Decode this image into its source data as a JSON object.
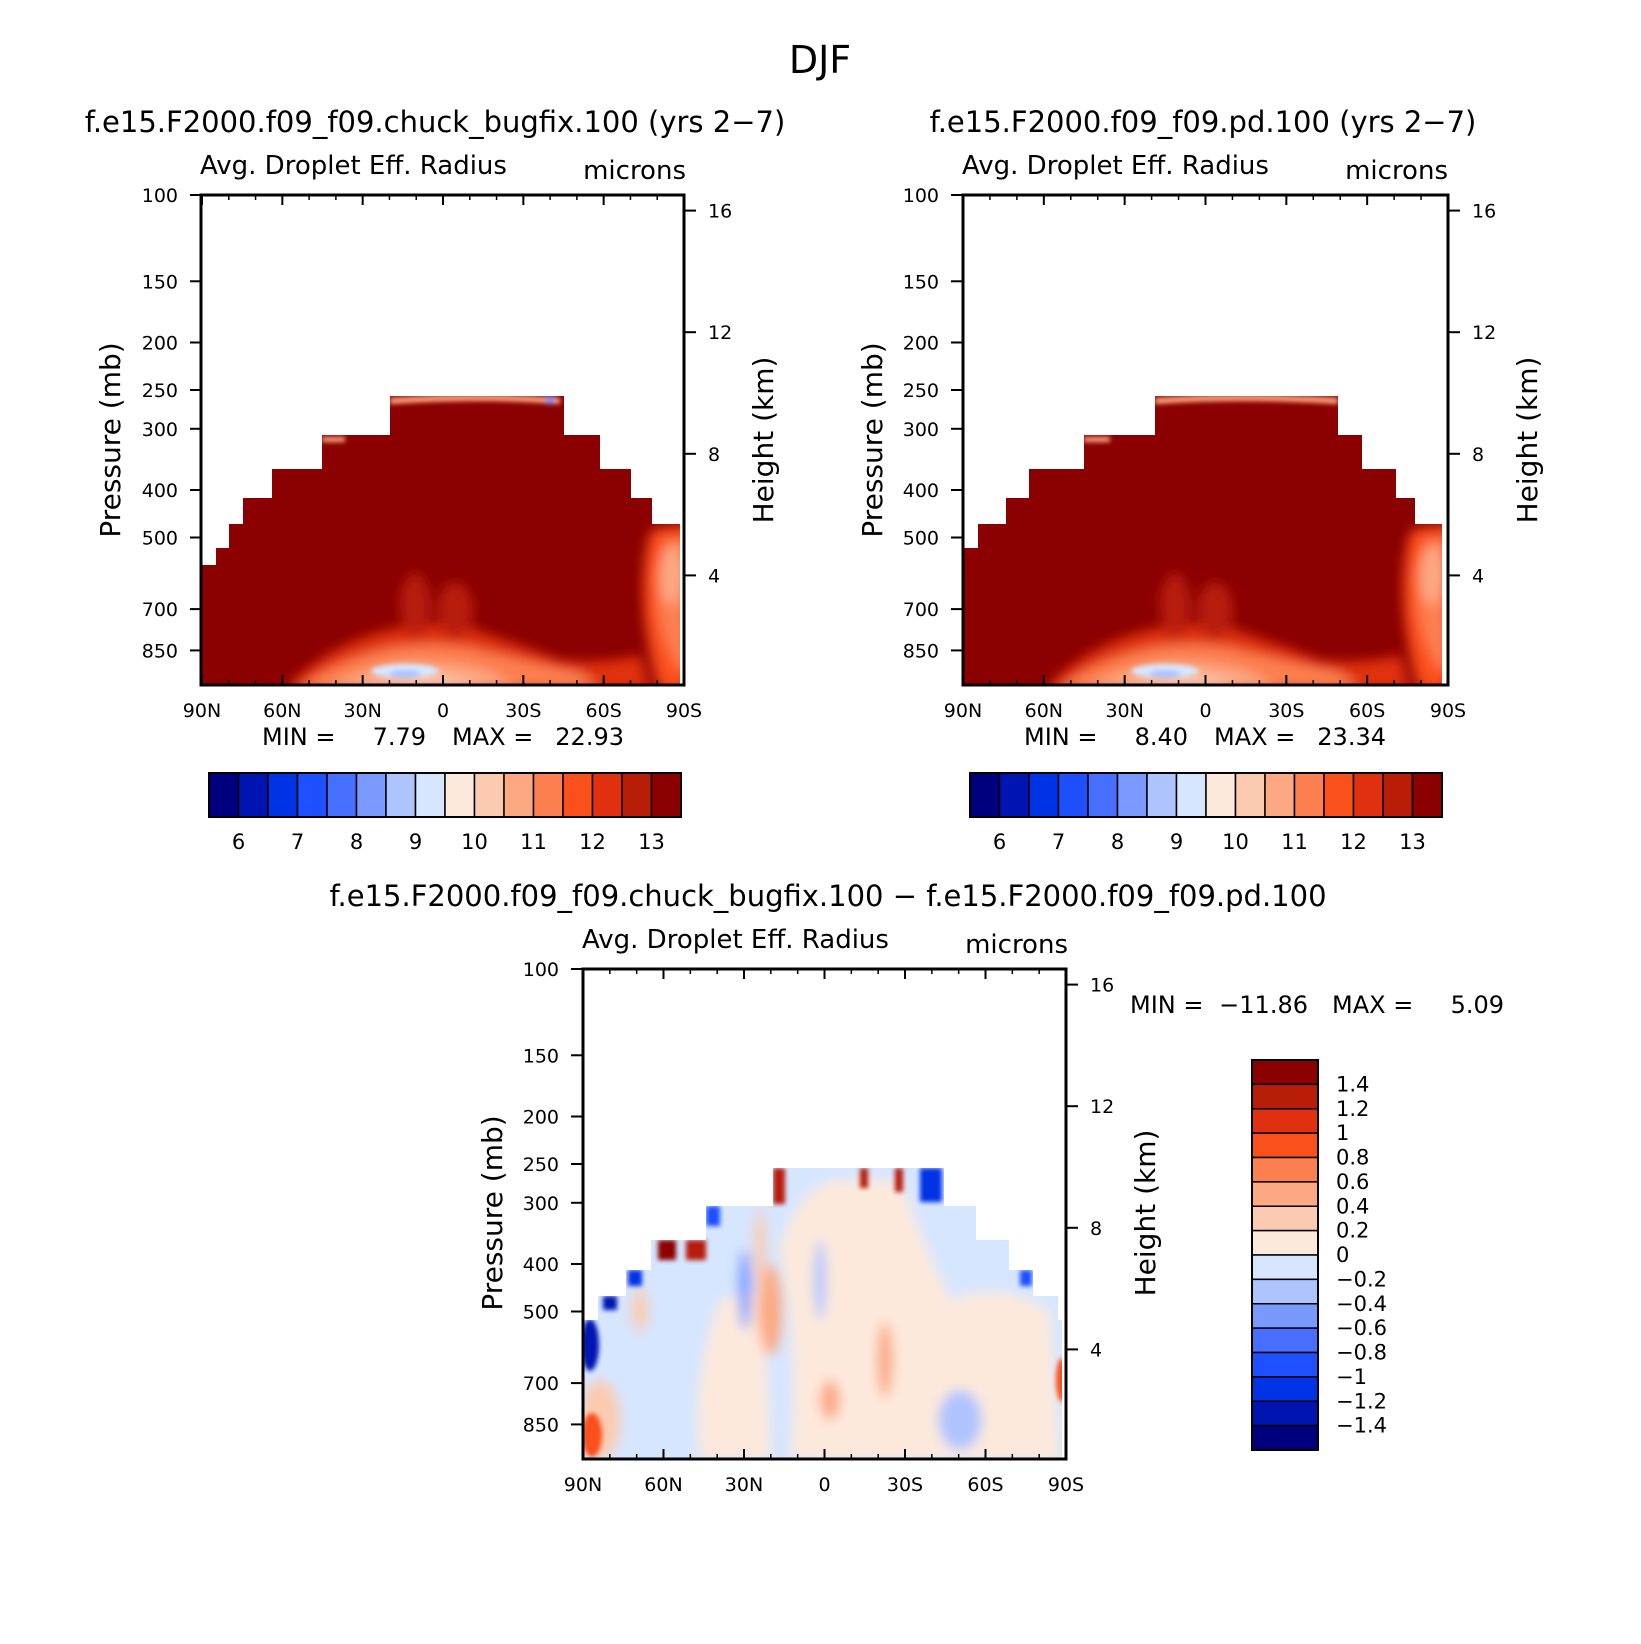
{
  "figure_title": "DJF",
  "colors": {
    "low_scale": [
      "#00007f",
      "#0014b2",
      "#0033e5",
      "#1f50ff",
      "#476fff",
      "#7a99ff",
      "#aec4ff",
      "#d6e6ff",
      "#fde9dc",
      "#fccab0",
      "#fca882",
      "#fc7f4f",
      "#fb4f1c",
      "#e03010",
      "#b81d07",
      "#8b0000"
    ],
    "diff_scale": [
      "#00007f",
      "#0014b2",
      "#0033e5",
      "#1f50ff",
      "#476fff",
      "#7a99ff",
      "#aec4ff",
      "#d6e6ff",
      "#fde9dc",
      "#fccab0",
      "#fca882",
      "#fc7f4f",
      "#fb4f1c",
      "#e03010",
      "#b81d07",
      "#8b0000"
    ]
  },
  "chart_data": [
    {
      "type": "heatmap",
      "panel": "top-left",
      "case_title": "f.e15.F2000.f09_f09.chuck_bugfix.100 (yrs 2−7)",
      "variable": "Avg. Droplet Eff. Radius",
      "units": "microns",
      "ylabel": "Pressure (mb)",
      "ylabel2": "Height (km)",
      "x_ticks": [
        "90N",
        "60N",
        "30N",
        "0",
        "30S",
        "60S",
        "90S"
      ],
      "y_ticks": [
        "100",
        "150",
        "200",
        "250",
        "300",
        "400",
        "500",
        "700",
        "850"
      ],
      "y2_ticks": [
        "16",
        "12",
        "8",
        "4"
      ],
      "min_label": "MIN =",
      "min_value": "7.79",
      "max_label": "MAX =",
      "max_value": "22.93",
      "colorbar_labels": [
        "6",
        "7",
        "8",
        "9",
        "10",
        "11",
        "12",
        "13"
      ],
      "colorbar_orientation": "horizontal",
      "ylim_mb": [
        1000,
        100
      ],
      "dominant_value": ">13.25 (dark red) over cloud region 250–1000 mb",
      "cloud_top_mb": 250
    },
    {
      "type": "heatmap",
      "panel": "top-right",
      "case_title": "f.e15.F2000.f09_f09.pd.100 (yrs 2−7)",
      "variable": "Avg. Droplet Eff. Radius",
      "units": "microns",
      "ylabel": "Pressure (mb)",
      "ylabel2": "Height (km)",
      "x_ticks": [
        "90N",
        "60N",
        "30N",
        "0",
        "30S",
        "60S",
        "90S"
      ],
      "y_ticks": [
        "100",
        "150",
        "200",
        "250",
        "300",
        "400",
        "500",
        "700",
        "850"
      ],
      "y2_ticks": [
        "16",
        "12",
        "8",
        "4"
      ],
      "min_label": "MIN =",
      "min_value": "8.40",
      "max_label": "MAX =",
      "max_value": "23.34",
      "colorbar_labels": [
        "6",
        "7",
        "8",
        "9",
        "10",
        "11",
        "12",
        "13"
      ],
      "colorbar_orientation": "horizontal",
      "ylim_mb": [
        1000,
        100
      ],
      "dominant_value": ">13.25 (dark red) over cloud region 250–1000 mb",
      "cloud_top_mb": 250
    },
    {
      "type": "heatmap",
      "panel": "bottom-difference",
      "case_title": "f.e15.F2000.f09_f09.chuck_bugfix.100 − f.e15.F2000.f09_f09.pd.100",
      "variable": "Avg. Droplet Eff. Radius",
      "units": "microns",
      "ylabel": "Pressure (mb)",
      "ylabel2": "Height (km)",
      "x_ticks": [
        "90N",
        "60N",
        "30N",
        "0",
        "30S",
        "60S",
        "90S"
      ],
      "y_ticks": [
        "100",
        "150",
        "200",
        "250",
        "300",
        "400",
        "500",
        "700",
        "850"
      ],
      "y2_ticks": [
        "16",
        "12",
        "8",
        "4"
      ],
      "min_label": "MIN =",
      "min_value": "−11.86",
      "max_label": "MAX =",
      "max_value": "5.09",
      "colorbar_labels": [
        "1.4",
        "1.2",
        "1",
        "0.8",
        "0.6",
        "0.4",
        "0.2",
        "0",
        "−0.2",
        "−0.4",
        "−0.6",
        "−0.8",
        "−1",
        "−1.2",
        "−1.4"
      ],
      "colorbar_orientation": "vertical",
      "ylim_mb": [
        1000,
        100
      ],
      "dominant_value": "mostly within ±0.2, red/blue extremes near cloud top",
      "cloud_top_mb": 250
    }
  ]
}
